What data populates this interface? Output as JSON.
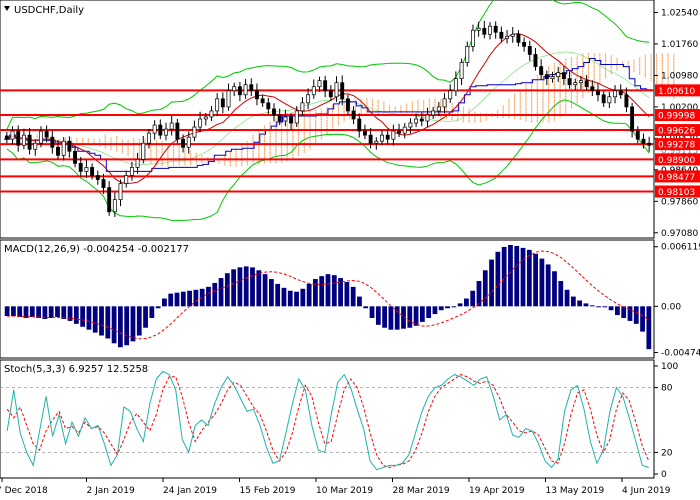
{
  "window": {
    "title": "USDCHF,Daily"
  },
  "colors": {
    "background": "#ffffff",
    "candles": "#000000",
    "bollinger": "#00c800",
    "ma_blue": "#0000cc",
    "ma_red": "#cc0000",
    "ichimoku_cloud": "#f4a460",
    "level_line": "#ff0000",
    "level_label_bg": "#ff0000",
    "macd_hist": "#000080",
    "macd_signal": "#ff0000",
    "stoch_main": "#20b2aa",
    "stoch_signal": "#ff0000",
    "grid_text": "#000000"
  },
  "chart_data": [
    {
      "type": "candlestick",
      "title": "USDCHF,Daily",
      "ylim": [
        0.97,
        1.028
      ],
      "price_ticks": [
        "1.02540",
        "1.01760",
        "1.00980",
        "1.00200",
        "0.99420",
        "0.98640",
        "0.97860",
        "0.97080"
      ],
      "levels": [
        {
          "label": "1.00610",
          "value": 1.0061
        },
        {
          "label": "0.99998",
          "value": 0.99998
        },
        {
          "label": "0.99626",
          "value": 0.99626
        },
        {
          "label": "0.99278",
          "value": 0.99278
        },
        {
          "label": "0.98900",
          "value": 0.989
        },
        {
          "label": "0.98477",
          "value": 0.98477
        },
        {
          "label": "0.98103",
          "value": 0.98103
        }
      ],
      "partial_ticks": [
        "0.99115",
        "0.99420",
        "0.98640"
      ],
      "x_labels": [
        "7 Dec 2018",
        "2 Jan 2019",
        "24 Jan 2019",
        "15 Feb 2019",
        "10 Mar 2019",
        "28 Mar 2019",
        "19 Apr 2019",
        "13 May 2019",
        "4 Jun 2019"
      ],
      "close": [
        0.994,
        0.996,
        0.9925,
        0.995,
        0.9915,
        0.993,
        0.996,
        0.9945,
        0.992,
        0.99,
        0.9935,
        0.991,
        0.988,
        0.986,
        0.987,
        0.985,
        0.984,
        0.982,
        0.976,
        0.979,
        0.983,
        0.985,
        0.987,
        0.989,
        0.993,
        0.9955,
        0.9975,
        0.995,
        0.9965,
        0.998,
        0.994,
        0.992,
        0.9945,
        0.997,
        0.999,
        0.9995,
        1.001,
        1.004,
        1.002,
        1.006,
        1.007,
        1.005,
        1.0075,
        1.006,
        1.004,
        1.003,
        1.0015,
        1.0,
        0.9985,
        0.9995,
        0.998,
        1.001,
        1.003,
        1.005,
        1.007,
        1.0085,
        1.006,
        1.0045,
        1.008,
        1.004,
        1.001,
        0.999,
        0.996,
        0.995,
        0.993,
        0.9935,
        0.995,
        0.994,
        0.996,
        0.9955,
        0.997,
        0.998,
        0.999,
        0.9985,
        1.0,
        1.001,
        1.002,
        1.004,
        1.006,
        1.009,
        1.013,
        1.017,
        1.021,
        1.0215,
        1.02,
        1.022,
        1.0205,
        1.019,
        1.0195,
        1.02,
        1.018,
        1.017,
        1.015,
        1.012,
        1.01,
        1.009,
        1.0095,
        1.0105,
        1.009,
        1.0075,
        1.008,
        1.0085,
        1.007,
        1.006,
        1.005,
        1.003,
        1.0045,
        1.006,
        1.005,
        1.002,
        0.996,
        0.994,
        0.993,
        0.9925
      ]
    },
    {
      "type": "bar",
      "title": "MACD(12,26,9) -0.004254 -0.002177",
      "ylim": [
        -0.005,
        0.0064
      ],
      "ticks": [
        "0.006119",
        "0.00",
        "-0.004748"
      ],
      "values": [
        -0.001,
        -0.001,
        -0.0011,
        -0.0012,
        -0.0011,
        -0.0012,
        -0.0013,
        -0.0012,
        -0.0011,
        -0.0013,
        -0.0015,
        -0.0018,
        -0.0021,
        -0.0024,
        -0.0027,
        -0.003,
        -0.0033,
        -0.0038,
        -0.0042,
        -0.004,
        -0.0036,
        -0.003,
        -0.0022,
        -0.0012,
        -0.0002,
        0.0008,
        0.0013,
        0.0014,
        0.0015,
        0.0016,
        0.0017,
        0.0018,
        0.002,
        0.0024,
        0.0029,
        0.0034,
        0.0038,
        0.004,
        0.0041,
        0.004,
        0.0037,
        0.0033,
        0.0028,
        0.0023,
        0.0019,
        0.0016,
        0.0015,
        0.0018,
        0.0023,
        0.0028,
        0.0031,
        0.0033,
        0.0032,
        0.0029,
        0.0025,
        0.002,
        0.001,
        -0.0002,
        -0.0012,
        -0.0019,
        -0.0022,
        -0.0024,
        -0.0024,
        -0.0023,
        -0.0022,
        -0.002,
        -0.0016,
        -0.0012,
        -0.0008,
        -0.0004,
        -0.0002,
        0.0,
        0.0003,
        0.0008,
        0.0016,
        0.0026,
        0.0037,
        0.0048,
        0.0056,
        0.0061,
        0.0063,
        0.0062,
        0.006,
        0.0058,
        0.0054,
        0.0049,
        0.0043,
        0.0036,
        0.0026,
        0.0017,
        0.001,
        0.0006,
        0.0003,
        0.0001,
        0.0,
        -0.0001,
        -0.0004,
        -0.0009,
        -0.0012,
        -0.0015,
        -0.0018,
        -0.0026,
        -0.0044
      ]
    },
    {
      "type": "line",
      "title": "Stoch(5,3,3) 6.9257 12.5258",
      "ylim": [
        0,
        100
      ],
      "ticks": [
        "100",
        "80",
        "20",
        "0"
      ],
      "main": [
        40,
        78,
        38,
        20,
        8,
        40,
        72,
        35,
        55,
        28,
        48,
        35,
        52,
        42,
        45,
        28,
        8,
        18,
        62,
        58,
        42,
        30,
        65,
        88,
        95,
        92,
        78,
        32,
        20,
        45,
        50,
        45,
        65,
        80,
        90,
        82,
        70,
        58,
        60,
        45,
        25,
        10,
        12,
        38,
        65,
        88,
        78,
        45,
        22,
        20,
        55,
        85,
        92,
        80,
        60,
        42,
        12,
        4,
        6,
        8,
        8,
        10,
        18,
        38,
        58,
        72,
        80,
        82,
        88,
        92,
        90,
        86,
        82,
        88,
        90,
        72,
        50,
        55,
        36,
        34,
        42,
        40,
        28,
        12,
        6,
        14,
        58,
        78,
        82,
        60,
        30,
        10,
        22,
        58,
        80,
        72,
        52,
        30,
        8,
        6
      ],
      "signal": [
        60,
        52,
        62,
        45,
        28,
        22,
        40,
        50,
        58,
        42,
        44,
        38,
        48,
        42,
        44,
        38,
        28,
        18,
        32,
        48,
        56,
        48,
        40,
        55,
        78,
        90,
        90,
        72,
        48,
        30,
        40,
        48,
        55,
        65,
        78,
        85,
        82,
        72,
        62,
        55,
        40,
        22,
        12,
        20,
        38,
        62,
        82,
        72,
        48,
        28,
        30,
        55,
        78,
        88,
        80,
        62,
        38,
        18,
        8,
        6,
        8,
        9,
        12,
        22,
        38,
        58,
        72,
        80,
        84,
        88,
        92,
        90,
        86,
        84,
        86,
        82,
        70,
        55,
        48,
        40,
        38,
        40,
        36,
        24,
        12,
        10,
        28,
        55,
        75,
        78,
        60,
        36,
        20,
        32,
        60,
        75,
        68,
        48,
        26,
        12
      ]
    }
  ]
}
